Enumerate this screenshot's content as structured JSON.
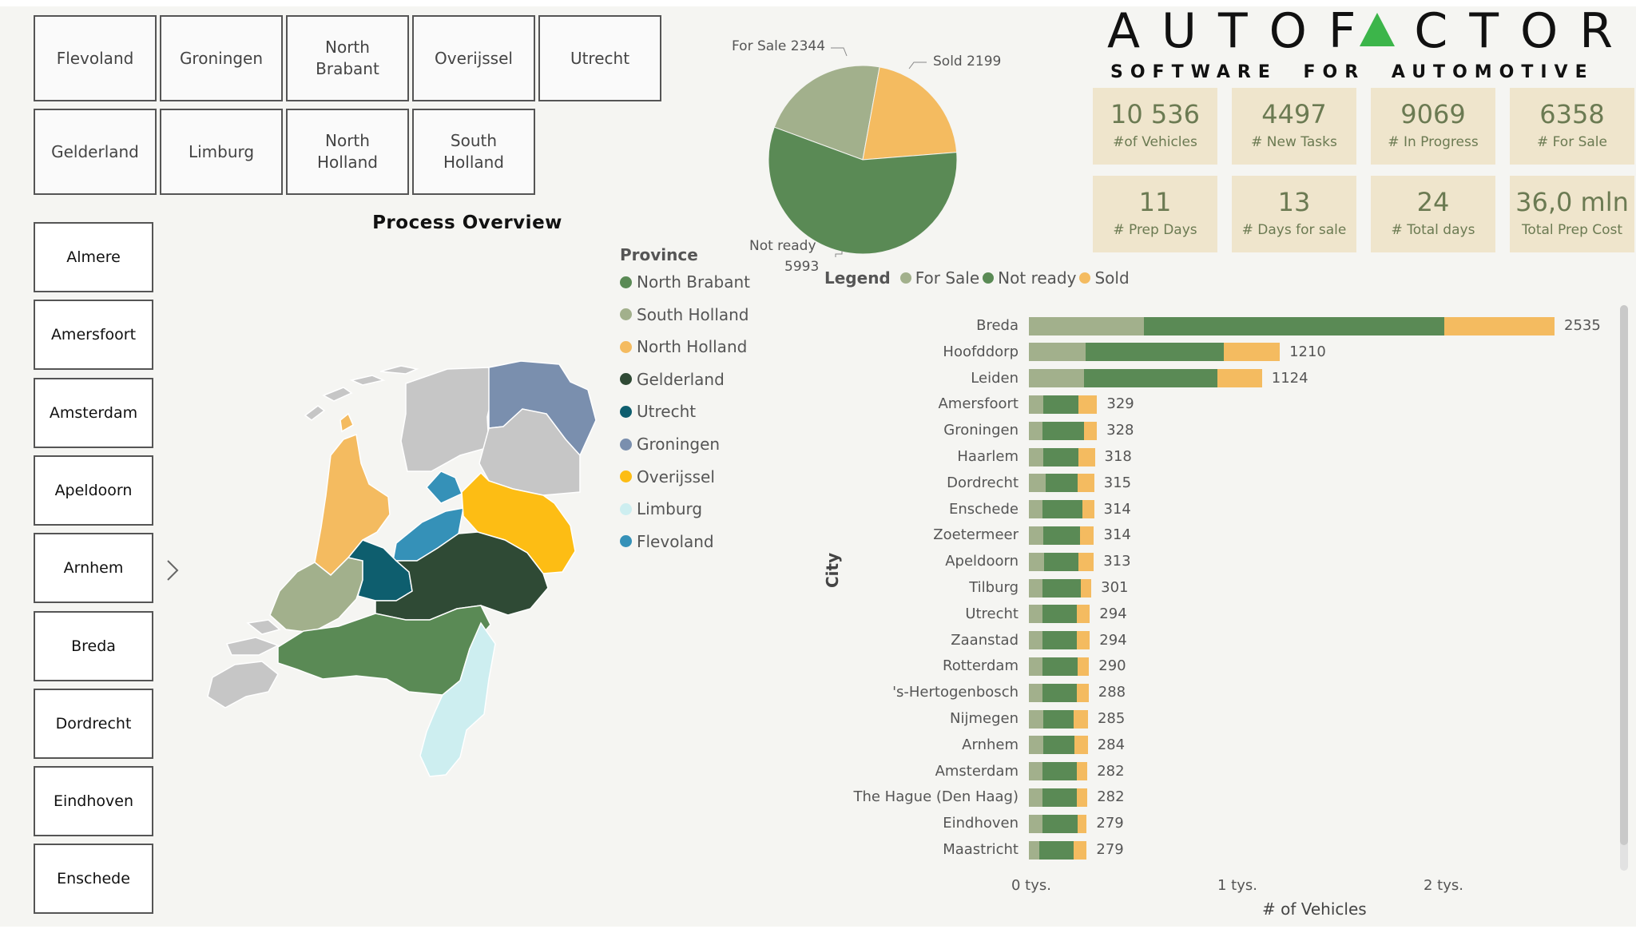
{
  "provinces_buttons": [
    "Flevoland",
    "Groningen",
    "North\nBrabant",
    "Overijssel",
    "Utrecht",
    "Gelderland",
    "Limburg",
    "North\nHolland",
    "South\nHolland"
  ],
  "cities_buttons": [
    "Almere",
    "Amersfoort",
    "Amsterdam",
    "Apeldoorn",
    "Arnhem",
    "Breda",
    "Dordrecht",
    "Eindhoven",
    "Enschede"
  ],
  "map": {
    "title": "Process Overview",
    "legend_title": "Province",
    "legend": [
      {
        "name": "North Brabant",
        "color": "#5a8a55"
      },
      {
        "name": "South Holland",
        "color": "#a2b08c"
      },
      {
        "name": "North Holland",
        "color": "#f4bb60"
      },
      {
        "name": "Gelderland",
        "color": "#2f4a35"
      },
      {
        "name": "Utrecht",
        "color": "#0e5e6e"
      },
      {
        "name": "Groningen",
        "color": "#7a8fae"
      },
      {
        "name": "Overijssel",
        "color": "#fdbd14"
      },
      {
        "name": "Limburg",
        "color": "#cdeef0"
      },
      {
        "name": "Flevoland",
        "color": "#3591b8"
      }
    ]
  },
  "logo": {
    "name": "AUTOFACTOR",
    "tagline": "SOFTWARE FOR AUTOMOTIVE",
    "accent": "#3cb54a"
  },
  "kpis": [
    {
      "value": "10 536",
      "label": "#of Vehicles"
    },
    {
      "value": "4497",
      "label": "# New Tasks"
    },
    {
      "value": "9069",
      "label": "# In Progress"
    },
    {
      "value": "6358",
      "label": "# For Sale"
    },
    {
      "value": "11",
      "label": "# Prep Days"
    },
    {
      "value": "13",
      "label": "# Days for sale"
    },
    {
      "value": "24",
      "label": "# Total days"
    },
    {
      "value": "36,0 mln",
      "label": "Total Prep Cost"
    }
  ],
  "pie": {
    "for_sale_label": "For Sale 2344",
    "sold_label": "Sold 2199",
    "not_ready_label": "Not ready",
    "not_ready_value": "5993"
  },
  "chart_data": [
    {
      "type": "pie",
      "categories": [
        "For Sale",
        "Sold",
        "Not ready"
      ],
      "values": [
        2344,
        2199,
        5993
      ],
      "colors": [
        "#a2b08c",
        "#f4bb60",
        "#5a8a55"
      ]
    },
    {
      "type": "bar",
      "orientation": "horizontal",
      "stacked": true,
      "legend_title": "Legend",
      "ylabel": "City",
      "xlabel": "# of Vehicles",
      "xticks": [
        "0 tys.",
        "1 tys.",
        "2 tys."
      ],
      "xlim": [
        0,
        2600
      ],
      "categories": [
        "Breda",
        "Hoofddorp",
        "Leiden",
        "Amersfoort",
        "Groningen",
        "Haarlem",
        "Dordrecht",
        "Enschede",
        "Zoetermeer",
        "Apeldoorn",
        "Tilburg",
        "Utrecht",
        "Zaanstad",
        "Rotterdam",
        "'s-Hertogenbosch",
        "Nijmegen",
        "Arnhem",
        "Amsterdam",
        "The Hague (Den Haag)",
        "Eindhoven",
        "Maastricht"
      ],
      "totals": [
        2535,
        1210,
        1124,
        329,
        328,
        318,
        315,
        314,
        314,
        313,
        301,
        294,
        294,
        290,
        288,
        285,
        284,
        282,
        282,
        279,
        279
      ],
      "series": [
        {
          "name": "For Sale",
          "color": "#a2b08c",
          "values": [
            555,
            275,
            265,
            70,
            65,
            70,
            80,
            65,
            70,
            75,
            65,
            65,
            65,
            65,
            65,
            70,
            70,
            65,
            65,
            65,
            50
          ]
        },
        {
          "name": "Not ready",
          "color": "#5a8a55",
          "values": [
            1450,
            665,
            645,
            170,
            200,
            170,
            155,
            195,
            175,
            165,
            185,
            165,
            165,
            170,
            165,
            145,
            150,
            165,
            165,
            170,
            165
          ]
        },
        {
          "name": "Sold",
          "color": "#f4bb60",
          "values": [
            530,
            270,
            214,
            89,
            63,
            78,
            80,
            54,
            69,
            73,
            51,
            64,
            64,
            55,
            58,
            70,
            64,
            52,
            52,
            44,
            64
          ]
        }
      ]
    }
  ]
}
